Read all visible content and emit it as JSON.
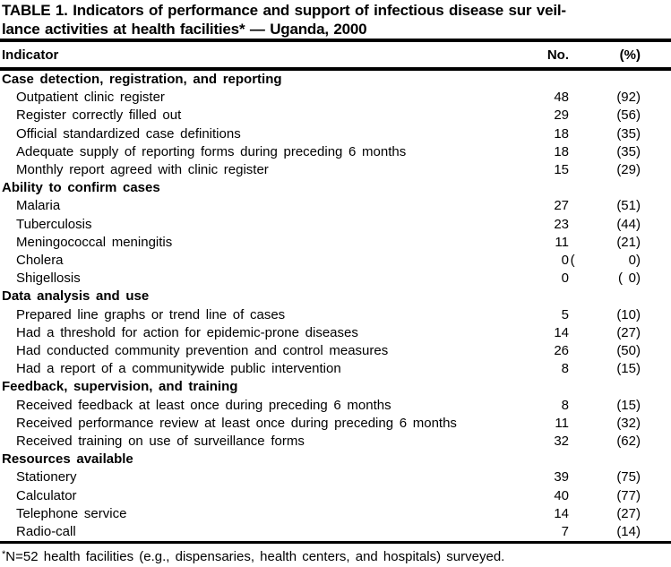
{
  "title": {
    "line1": "TABLE 1. Indicators of performance and support of infectious disease sur veil-",
    "line2": "lance activities at health facilities* — Uganda, 2000"
  },
  "header": {
    "indicator": "Indicator",
    "no": "No.",
    "pct": "(%)"
  },
  "table": {
    "rows": [
      {
        "type": "section",
        "label": "Case detection, registration, and reporting",
        "no": "",
        "pct": ""
      },
      {
        "type": "item",
        "label": "Outpatient clinic register",
        "no": "48",
        "pct": "(92)"
      },
      {
        "type": "item",
        "label": "Register correctly filled out",
        "no": "29",
        "pct": "(56)"
      },
      {
        "type": "item",
        "label": "Official standardized case definitions",
        "no": "18",
        "pct": "(35)"
      },
      {
        "type": "item",
        "label": "Adequate supply of reporting forms during preceding 6 months",
        "no": "18",
        "pct": "(35)"
      },
      {
        "type": "item",
        "label": "Monthly report agreed with clinic register",
        "no": "15",
        "pct": "(29)"
      },
      {
        "type": "section",
        "label": "Ability to confirm cases",
        "no": "",
        "pct": ""
      },
      {
        "type": "item",
        "label": "Malaria",
        "no": "27",
        "pct": "(51)"
      },
      {
        "type": "item",
        "label": "Tuberculosis",
        "no": "23",
        "pct": "(44)"
      },
      {
        "type": "item",
        "label": "Meningococcal meningitis",
        "no": "11",
        "pct": "(21)"
      },
      {
        "type": "item",
        "label": "Cholera",
        "no": "0",
        "pct": "(         0)"
      },
      {
        "type": "item",
        "label": "Shigellosis",
        "no": "0",
        "pct": "( 0)"
      },
      {
        "type": "section",
        "label": "Data analysis and use",
        "no": "",
        "pct": ""
      },
      {
        "type": "item",
        "label": "Prepared line graphs or trend line of cases",
        "no": "5",
        "pct": "(10)"
      },
      {
        "type": "item",
        "label": "Had a threshold for action for epidemic-prone diseases",
        "no": "14",
        "pct": "(27)"
      },
      {
        "type": "item",
        "label": "Had conducted community prevention and control measures",
        "no": "26",
        "pct": "(50)"
      },
      {
        "type": "item",
        "label": "Had a report of a communitywide public intervention",
        "no": "8",
        "pct": "(15)"
      },
      {
        "type": "section",
        "label": "Feedback, supervision, and training",
        "no": "",
        "pct": ""
      },
      {
        "type": "item",
        "label": "Received feedback at least once during preceding 6 months",
        "no": "8",
        "pct": "(15)"
      },
      {
        "type": "item",
        "label": "Received performance review at least once during preceding 6 months",
        "no": "11",
        "pct": "(32)"
      },
      {
        "type": "item",
        "label": "Received training on use of surveillance forms",
        "no": "32",
        "pct": "(62)"
      },
      {
        "type": "section",
        "label": "Resources available",
        "no": "",
        "pct": ""
      },
      {
        "type": "item",
        "label": "Stationery",
        "no": "39",
        "pct": "(75)"
      },
      {
        "type": "item",
        "label": "Calculator",
        "no": "40",
        "pct": "(77)"
      },
      {
        "type": "item",
        "label": "Telephone service",
        "no": "14",
        "pct": "(27)"
      },
      {
        "type": "item",
        "label": "Radio-call",
        "no": "7",
        "pct": "(14)"
      }
    ]
  },
  "footnote": {
    "marker": "*",
    "text": "N=52 health facilities (e.g., dispensaries, health centers, and hospitals) surveyed."
  }
}
